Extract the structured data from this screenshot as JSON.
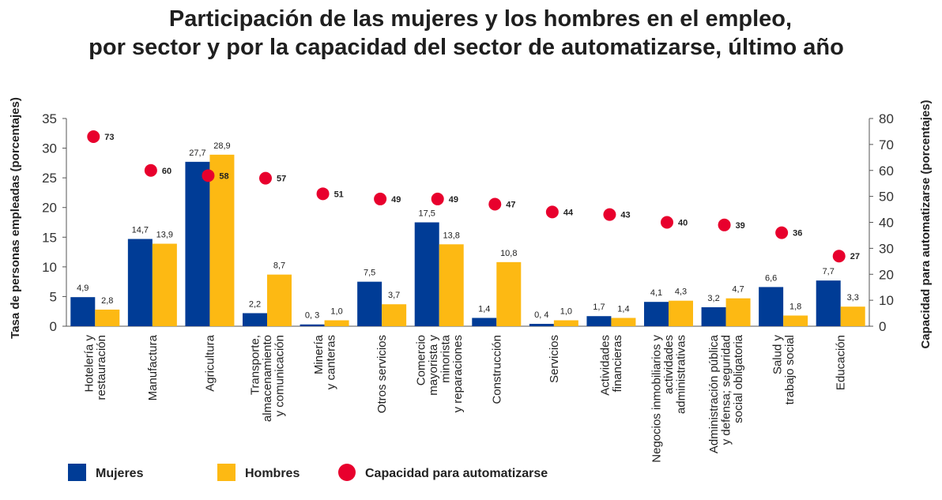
{
  "title_line1": "Participación de las mujeres y los hombres en el empleo,",
  "title_line2": "por sector y por la capacidad del sector de automatizarse, último año",
  "chart_data": {
    "type": "bar",
    "title": "Participación de las mujeres y los hombres en el empleo, por sector y por la capacidad del sector de automatizarse, último año",
    "ylabel": "Tasa de personas empleadas (porcentajes)",
    "y2label": "Capacidad para automatizarse (porcentajes)",
    "ylim": [
      0,
      35
    ],
    "y2lim": [
      0,
      80
    ],
    "yticks": [
      "0",
      "5",
      "10",
      "15",
      "20",
      "25",
      "30",
      "35"
    ],
    "y2ticks": [
      "0",
      "10",
      "20",
      "30",
      "40",
      "50",
      "60",
      "70",
      "80"
    ],
    "categories": [
      [
        "Hotelería y",
        "restauración"
      ],
      [
        "Manufactura"
      ],
      [
        "Agricultura"
      ],
      [
        "Transporte,",
        "almacenamiento",
        "y comunicación"
      ],
      [
        "Minería",
        "y canteras"
      ],
      [
        "Otros servicios"
      ],
      [
        "Comercio",
        "mayorista y",
        "minorista",
        "y reparaciones"
      ],
      [
        "Construcción"
      ],
      [
        "Servicios"
      ],
      [
        "Actividades",
        "financieras"
      ],
      [
        "Negocios inmobiliarios y",
        "actividades",
        "administrativas"
      ],
      [
        "Administración pública",
        "y defensa; seguridad",
        "social obligatoria"
      ],
      [
        "Salud y",
        "trabajo social"
      ],
      [
        "Educación"
      ]
    ],
    "series": [
      {
        "name": "Mujeres",
        "color": "#003C96",
        "axis": "left",
        "values": [
          4.9,
          14.7,
          27.7,
          2.2,
          0.3,
          7.5,
          17.5,
          1.4,
          0.4,
          1.7,
          4.1,
          3.2,
          6.6,
          7.7
        ],
        "labels": [
          "4,9",
          "14,7",
          "27,7",
          "2,2",
          "0, 3",
          "7,5",
          "17,5",
          "1,4",
          "0, 4",
          "1,7",
          "4,1",
          "3,2",
          "6,6",
          "7,7"
        ]
      },
      {
        "name": "Hombres",
        "color": "#FDB913",
        "axis": "left",
        "values": [
          2.8,
          13.9,
          28.9,
          8.7,
          1.0,
          3.7,
          13.8,
          10.8,
          1.0,
          1.4,
          4.3,
          4.7,
          1.8,
          3.3
        ],
        "labels": [
          "2,8",
          "13,9",
          "28,9",
          "8,7",
          "1,0",
          "3,7",
          "13,8",
          "10,8",
          "1,0",
          "1,4",
          "4,3",
          "4,7",
          "1,8",
          "3,3"
        ]
      },
      {
        "name": "Capacidad para automatizarse",
        "color": "#E8002D",
        "axis": "right",
        "marker": "circle",
        "values": [
          73,
          60,
          58,
          57,
          51,
          49,
          49,
          47,
          44,
          43,
          40,
          39,
          36,
          27
        ],
        "labels": [
          "73",
          "60",
          "58",
          "57",
          "51",
          "49",
          "49",
          "47",
          "44",
          "43",
          "40",
          "39",
          "36",
          "27"
        ]
      }
    ],
    "legend": [
      "Mujeres",
      "Hombres",
      "Capacidad para automatizarse"
    ],
    "legend_position": "bottom-left"
  }
}
